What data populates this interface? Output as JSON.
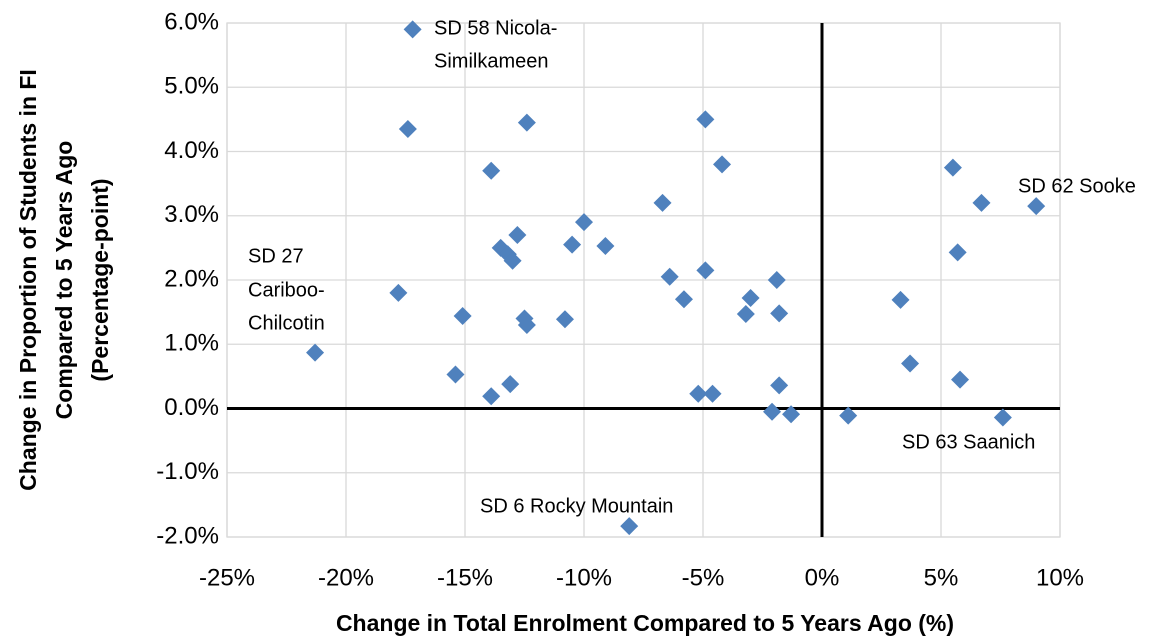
{
  "chart_data": {
    "type": "scatter",
    "x_label": "Change in Total Enrolment Compared to 5 Years Ago (%)",
    "y_label": [
      "Change in Proportion of Students in FI",
      "Compared to 5 Years Ago",
      "(Percentage-point)"
    ],
    "color": "#4f81bd",
    "grid": true,
    "xlim": [
      -25,
      10
    ],
    "ylim": [
      -2,
      6
    ],
    "xticks": [
      {
        "value": -25,
        "label": "-25%"
      },
      {
        "value": -20,
        "label": "-20%"
      },
      {
        "value": -15,
        "label": "-15%"
      },
      {
        "value": -10,
        "label": "-10%"
      },
      {
        "value": -5,
        "label": "-5%"
      },
      {
        "value": 0,
        "label": "0%"
      },
      {
        "value": 5,
        "label": "5%"
      },
      {
        "value": 10,
        "label": "10%"
      }
    ],
    "yticks": [
      {
        "value": -2,
        "label": "-2.0%"
      },
      {
        "value": -1,
        "label": "-1.0%"
      },
      {
        "value": 0,
        "label": "0.0%"
      },
      {
        "value": 1,
        "label": "1.0%"
      },
      {
        "value": 2,
        "label": "2.0%"
      },
      {
        "value": 3,
        "label": "3.0%"
      },
      {
        "value": 4,
        "label": "4.0%"
      },
      {
        "value": 5,
        "label": "5.0%"
      },
      {
        "value": 6,
        "label": "6.0%"
      }
    ],
    "x": [
      -17.2,
      -17.4,
      -12.4,
      -4.9,
      -13.9,
      -4.2,
      -10.0,
      -6.7,
      -12.8,
      -13.5,
      -13.2,
      -13.0,
      -10.5,
      -9.1,
      -6.4,
      -4.9,
      -1.9,
      -5.8,
      -3.0,
      -3.2,
      -1.8,
      -17.8,
      -15.1,
      -12.5,
      -12.4,
      -10.8,
      -21.3,
      -15.4,
      -13.9,
      -13.1,
      -5.2,
      -4.6,
      -1.8,
      -2.1,
      -1.3,
      1.1,
      -8.1,
      5.5,
      6.7,
      9.0,
      5.7,
      3.3,
      3.7,
      5.8,
      7.6
    ],
    "values": [
      5.9,
      4.35,
      4.45,
      4.5,
      3.7,
      3.8,
      2.9,
      3.2,
      2.7,
      2.5,
      2.4,
      2.3,
      2.55,
      2.53,
      2.05,
      2.15,
      2.0,
      1.7,
      1.72,
      1.47,
      1.48,
      1.8,
      1.44,
      1.4,
      1.3,
      1.39,
      0.87,
      0.53,
      0.19,
      0.38,
      0.23,
      0.23,
      0.36,
      -0.05,
      -0.09,
      -0.11,
      -1.83,
      3.75,
      3.2,
      3.15,
      2.43,
      1.69,
      0.7,
      0.45,
      -0.14
    ],
    "annotations": [
      "SD 58 Nicola-",
      "Similkameen",
      "SD 27",
      "Cariboo-",
      "Chilcotin",
      "SD 6 Rocky Mountain",
      "SD 62 Sooke",
      "SD 63 Saanich"
    ]
  }
}
